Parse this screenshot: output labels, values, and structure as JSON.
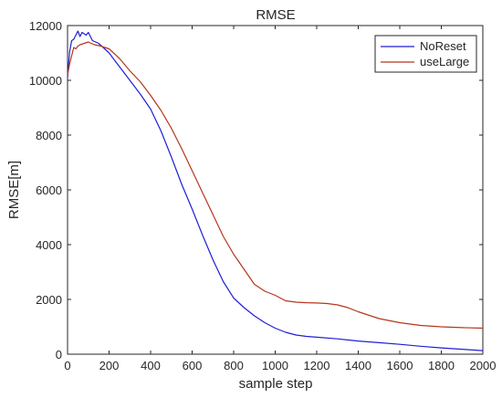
{
  "chart_data": {
    "type": "line",
    "title": "RMSE",
    "xlabel": "sample step",
    "ylabel": "RMSE[m]",
    "xlim": [
      0,
      2000
    ],
    "ylim": [
      0,
      12000
    ],
    "xticks": [
      0,
      200,
      400,
      600,
      800,
      1000,
      1200,
      1400,
      1600,
      1800,
      2000
    ],
    "yticks": [
      0,
      2000,
      4000,
      6000,
      8000,
      10000,
      12000
    ],
    "grid": false,
    "legend_position": "top-right",
    "series": [
      {
        "name": "NoReset",
        "color": "#1f1fd6",
        "x": [
          0,
          10,
          20,
          30,
          40,
          50,
          60,
          70,
          80,
          90,
          100,
          120,
          150,
          200,
          250,
          300,
          350,
          400,
          450,
          500,
          550,
          600,
          650,
          700,
          750,
          800,
          850,
          900,
          950,
          1000,
          1050,
          1100,
          1150,
          1200,
          1300,
          1400,
          1500,
          1600,
          1700,
          1800,
          1900,
          2000
        ],
        "y": [
          10100,
          11050,
          11450,
          11500,
          11650,
          11800,
          11600,
          11750,
          11700,
          11650,
          11750,
          11450,
          11350,
          11000,
          10500,
          10000,
          9500,
          8950,
          8150,
          7200,
          6200,
          5300,
          4350,
          3450,
          2650,
          2050,
          1700,
          1400,
          1150,
          950,
          800,
          700,
          650,
          620,
          560,
          480,
          420,
          360,
          290,
          230,
          180,
          130
        ]
      },
      {
        "name": "useLarge",
        "color": "#b5361c",
        "x": [
          0,
          10,
          20,
          30,
          40,
          50,
          60,
          80,
          100,
          130,
          160,
          200,
          250,
          300,
          350,
          400,
          450,
          500,
          550,
          600,
          650,
          700,
          750,
          800,
          850,
          900,
          950,
          1000,
          1050,
          1100,
          1150,
          1200,
          1250,
          1300,
          1350,
          1400,
          1500,
          1600,
          1700,
          1800,
          1900,
          2000
        ],
        "y": [
          10200,
          10600,
          10900,
          11200,
          11150,
          11250,
          11300,
          11350,
          11400,
          11300,
          11250,
          11150,
          10800,
          10350,
          9950,
          9450,
          8900,
          8250,
          7500,
          6700,
          5900,
          5100,
          4300,
          3650,
          3100,
          2550,
          2300,
          2150,
          1950,
          1900,
          1880,
          1870,
          1850,
          1800,
          1700,
          1550,
          1300,
          1150,
          1050,
          1000,
          970,
          950
        ]
      }
    ]
  }
}
